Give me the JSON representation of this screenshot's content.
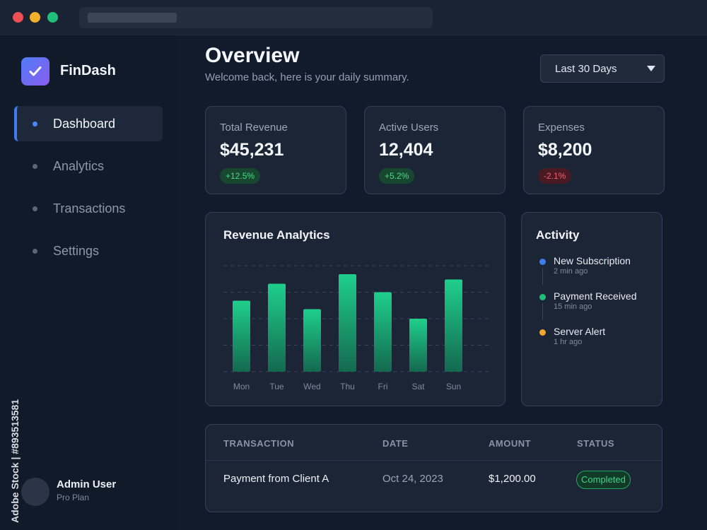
{
  "brand": {
    "name": "FinDash",
    "logo_icon": "check-icon"
  },
  "sidebar": {
    "items": [
      {
        "label": "Dashboard",
        "active": true
      },
      {
        "label": "Analytics",
        "active": false
      },
      {
        "label": "Transactions",
        "active": false
      },
      {
        "label": "Settings",
        "active": false
      }
    ],
    "user": {
      "name": "Admin User",
      "plan": "Pro Plan"
    }
  },
  "header": {
    "title": "Overview",
    "subtitle": "Welcome back, here is your daily summary.",
    "range": "Last 30 Days"
  },
  "stats": [
    {
      "label": "Total Revenue",
      "value": "$45,231",
      "change": "+12.5%",
      "trend": "up"
    },
    {
      "label": "Active Users",
      "value": "12,404",
      "change": "+5.2%",
      "trend": "up"
    },
    {
      "label": "Expenses",
      "value": "$8,200",
      "change": "-2.1%",
      "trend": "down"
    }
  ],
  "chart_data": {
    "type": "bar",
    "title": "Revenue Analytics",
    "categories": [
      "Mon",
      "Tue",
      "Wed",
      "Thu",
      "Fri",
      "Sat",
      "Sun"
    ],
    "values": [
      67,
      83,
      59,
      92,
      75,
      50,
      87
    ],
    "ylim": [
      0,
      100
    ],
    "grid": true,
    "bar_color": "#1fc98a"
  },
  "activity": {
    "title": "Activity",
    "items": [
      {
        "name": "New Subscription",
        "time": "2 min ago",
        "color": "#3f7cf0"
      },
      {
        "name": "Payment Received",
        "time": "15 min ago",
        "color": "#1fbf7a"
      },
      {
        "name": "Server Alert",
        "time": "1 hr ago",
        "color": "#f2a72b"
      }
    ]
  },
  "table": {
    "headers": {
      "transaction": "TRANSACTION",
      "date": "DATE",
      "amount": "AMOUNT",
      "status": "STATUS"
    },
    "rows": [
      {
        "transaction": "Payment from Client A",
        "date": "Oct 24, 2023",
        "amount": "$1,200.00",
        "status": "Completed"
      }
    ]
  },
  "watermark": "Adobe Stock | #893513581"
}
